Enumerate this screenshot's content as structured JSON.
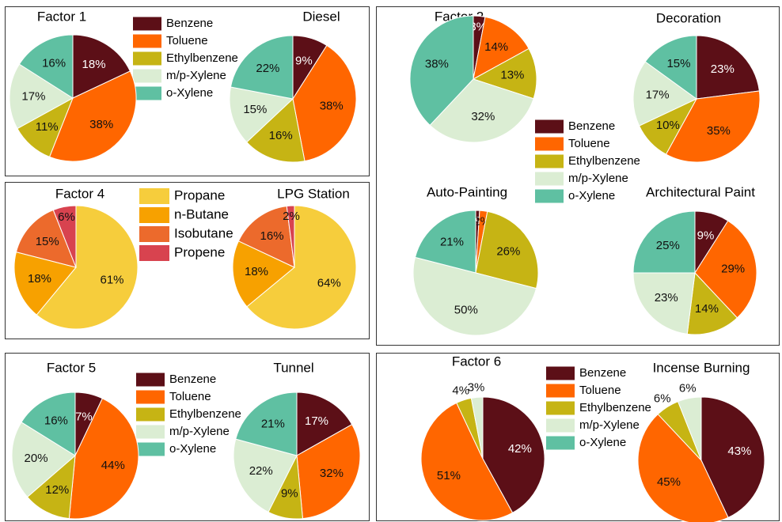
{
  "chart_data": [
    {
      "type": "pie",
      "categories": [
        "Benzene",
        "Toluene",
        "Ethylbenzene",
        "m/p-Xylene",
        "o-Xylene"
      ],
      "colors": [
        "#5c0f17",
        "#ff6600",
        "#c6b414",
        "#dbedd3",
        "#5fc0a2"
      ],
      "pies": [
        {
          "title": "Factor 1",
          "values": [
            18,
            38,
            11,
            17,
            16
          ],
          "value_labels": [
            "18%",
            "38%",
            "11%",
            "17%",
            "16%"
          ]
        },
        {
          "title": "Diesel",
          "values": [
            9,
            38,
            16,
            15,
            22
          ],
          "value_labels": [
            "9%",
            "38%",
            "16%",
            "15%",
            "22%"
          ]
        }
      ]
    },
    {
      "type": "pie",
      "categories": [
        "Propane",
        "n-Butane",
        "Isobutane",
        "Propene"
      ],
      "colors": [
        "#f6cd3c",
        "#f7a100",
        "#ec6a2c",
        "#d8434f"
      ],
      "pies": [
        {
          "title": "Factor 4",
          "values": [
            61,
            18,
            15,
            6
          ],
          "value_labels": [
            "61%",
            "18%",
            "15%",
            "6%"
          ]
        },
        {
          "title": "LPG Station",
          "values": [
            64,
            18,
            16,
            2
          ],
          "value_labels": [
            "64%",
            "18%",
            "16%",
            "2%"
          ]
        }
      ]
    },
    {
      "type": "pie",
      "categories": [
        "Benzene",
        "Toluene",
        "Ethylbenzene",
        "m/p-Xylene",
        "o-Xylene"
      ],
      "colors": [
        "#5c0f17",
        "#ff6600",
        "#c6b414",
        "#dbedd3",
        "#5fc0a2"
      ],
      "pies": [
        {
          "title": "Factor 5",
          "values": [
            7,
            44,
            12,
            20,
            16
          ],
          "value_labels": [
            "7%",
            "44%",
            "12%",
            "20%",
            "16%"
          ]
        },
        {
          "title": "Tunnel",
          "values": [
            17,
            32,
            9,
            22,
            21
          ],
          "value_labels": [
            "17%",
            "32%",
            "9%",
            "22%",
            "21%"
          ]
        }
      ]
    },
    {
      "type": "pie",
      "categories": [
        "Benzene",
        "Toluene",
        "Ethylbenzene",
        "m/p-Xylene",
        "o-Xylene"
      ],
      "colors": [
        "#5c0f17",
        "#ff6600",
        "#c6b414",
        "#dbedd3",
        "#5fc0a2"
      ],
      "pies": [
        {
          "title": "Factor 2",
          "values": [
            3,
            14,
            13,
            32,
            38
          ],
          "value_labels": [
            "3%",
            "14%",
            "13%",
            "32%",
            "38%"
          ]
        },
        {
          "title": "Decoration",
          "values": [
            23,
            35,
            10,
            17,
            15
          ],
          "value_labels": [
            "23%",
            "35%",
            "10%",
            "17%",
            "15%"
          ]
        },
        {
          "title": "Auto-Painting",
          "values": [
            1,
            2,
            26,
            50,
            21
          ],
          "value_labels": [
            "1%",
            "2%",
            "26%",
            "50%",
            "21%"
          ]
        },
        {
          "title": "Architectural Paint",
          "values": [
            9,
            29,
            14,
            23,
            25
          ],
          "value_labels": [
            "9%",
            "29%",
            "14%",
            "23%",
            "25%"
          ]
        }
      ]
    },
    {
      "type": "pie",
      "categories": [
        "Benzene",
        "Toluene",
        "Ethylbenzene",
        "m/p-Xylene",
        "o-Xylene"
      ],
      "colors": [
        "#5c0f17",
        "#ff6600",
        "#c6b414",
        "#dbedd3",
        "#5fc0a2"
      ],
      "pies": [
        {
          "title": "Factor 6",
          "values": [
            42,
            51,
            4,
            3,
            0
          ],
          "value_labels": [
            "42%",
            "51%",
            "4%",
            "3%",
            null
          ]
        },
        {
          "title": "Incense Burning",
          "values": [
            43,
            45,
            6,
            6,
            0
          ],
          "value_labels": [
            "43%",
            "45%",
            "6%",
            "6%",
            null
          ]
        }
      ]
    }
  ]
}
